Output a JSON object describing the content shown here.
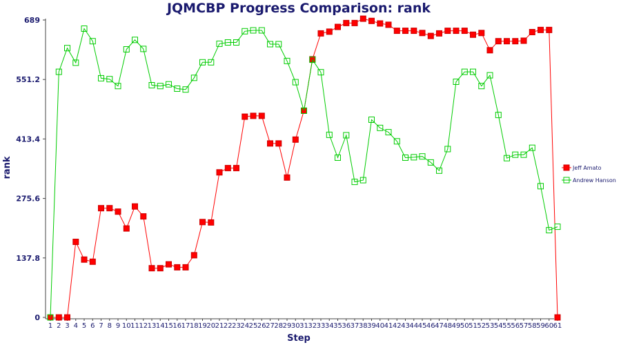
{
  "chart_data": {
    "type": "line",
    "title": "JQMCBP Progress Comparison: rank",
    "xlabel": "Step",
    "ylabel": "rank",
    "ylim": [
      0,
      689
    ],
    "yticks": [
      "0",
      "137.8",
      "275.6",
      "413.4",
      "551.2",
      "689"
    ],
    "ytick_values": [
      0,
      137.8,
      275.6,
      413.4,
      551.2,
      689
    ],
    "categories": [
      "1",
      "2",
      "3",
      "4",
      "5",
      "6",
      "7",
      "8",
      "9",
      "10",
      "11",
      "12",
      "13",
      "14",
      "15",
      "16",
      "17",
      "18",
      "19",
      "20",
      "21",
      "22",
      "23",
      "24",
      "25",
      "26",
      "27",
      "28",
      "29",
      "30",
      "31",
      "32",
      "33",
      "34",
      "35",
      "36",
      "37",
      "38",
      "39",
      "40",
      "41",
      "42",
      "43",
      "44",
      "45",
      "46",
      "47",
      "48",
      "49",
      "50",
      "51",
      "52",
      "53",
      "54",
      "55",
      "56",
      "57",
      "58",
      "59",
      "60",
      "61"
    ],
    "grid": false,
    "legend_position": "right",
    "series": [
      {
        "name": "Jeff Amato",
        "color": "#ff0000",
        "marker": "filled-square",
        "values": [
          0,
          0,
          0,
          175,
          134,
          129,
          253,
          253,
          245,
          206,
          257,
          234,
          114,
          114,
          123,
          116,
          116,
          144,
          221,
          220,
          336,
          346,
          346,
          465,
          467,
          467,
          403,
          403,
          324,
          412,
          479,
          598,
          658,
          662,
          673,
          682,
          682,
          692,
          687,
          681,
          678,
          664,
          664,
          664,
          659,
          652,
          658,
          664,
          664,
          664,
          655,
          659,
          619,
          640,
          640,
          640,
          641,
          661,
          666,
          666,
          0
        ]
      },
      {
        "name": "Andrew Hanson",
        "color": "#00cc00",
        "marker": "open-square",
        "values": [
          0,
          569,
          624,
          590,
          669,
          640,
          554,
          552,
          536,
          621,
          643,
          622,
          538,
          536,
          540,
          530,
          528,
          555,
          591,
          591,
          634,
          637,
          637,
          663,
          665,
          665,
          633,
          633,
          594,
          545,
          479,
          597,
          568,
          423,
          370,
          422,
          314,
          318,
          458,
          439,
          429,
          408,
          370,
          371,
          373,
          359,
          340,
          390,
          546,
          569,
          569,
          536,
          561,
          469,
          369,
          377,
          377,
          393,
          304,
          202,
          210
        ]
      }
    ]
  }
}
